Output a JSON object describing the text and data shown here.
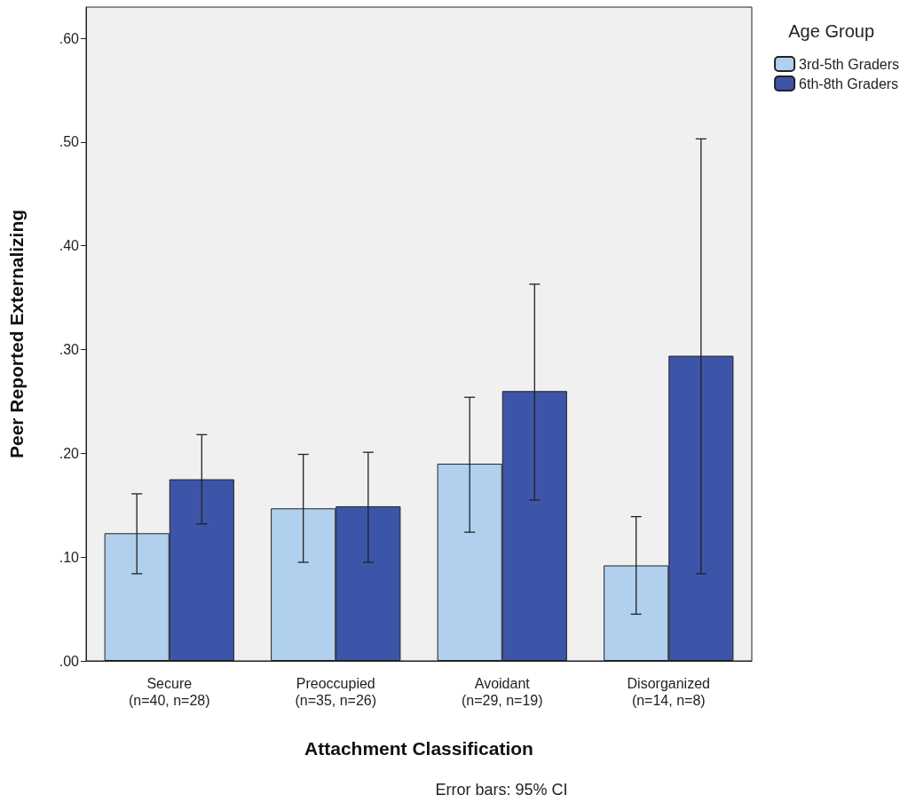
{
  "chart_data": {
    "type": "bar",
    "xlabel": "Attachment Classification",
    "ylabel": "Peer Reported Externalizing",
    "legend_title": "Age Group",
    "annotations": [
      "Error bars: 95% CI"
    ],
    "categories": [
      "Secure\n(n=40, n=28)",
      "Preoccupied\n(n=35, n=26)",
      "Avoidant\n(n=29, n=19)",
      "Disorganized\n(n=14, n=8)"
    ],
    "series": [
      {
        "name": "3rd-5th Graders",
        "color": "#b0d0ee",
        "values": [
          0.123,
          0.147,
          0.19,
          0.092
        ],
        "errors": [
          [
            0.084,
            0.161
          ],
          [
            0.095,
            0.199
          ],
          [
            0.124,
            0.254
          ],
          [
            0.045,
            0.139
          ]
        ]
      },
      {
        "name": "6th-8th Graders",
        "color": "#3d55a8",
        "values": [
          0.175,
          0.149,
          0.26,
          0.294
        ],
        "errors": [
          [
            0.132,
            0.218
          ],
          [
            0.095,
            0.201
          ],
          [
            0.155,
            0.363
          ],
          [
            0.084,
            0.503
          ]
        ]
      }
    ],
    "ylim": [
      0,
      0.63
    ],
    "yticks": [
      {
        "value": 0,
        "label": ".00"
      },
      {
        "value": 0.1,
        "label": ".10"
      },
      {
        "value": 0.2,
        "label": ".20"
      },
      {
        "value": 0.3,
        "label": ".30"
      },
      {
        "value": 0.4,
        "label": ".40"
      },
      {
        "value": 0.5,
        "label": ".50"
      },
      {
        "value": 0.6,
        "label": ".60"
      }
    ],
    "grid": false,
    "legend": "top right"
  }
}
